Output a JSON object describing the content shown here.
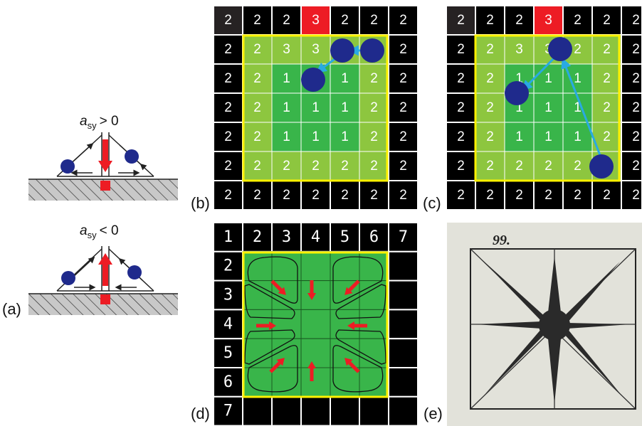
{
  "panel_labels": {
    "a": "(a)",
    "b": "(b)",
    "c": "(c)",
    "d": "(d)",
    "e": "(e)"
  },
  "panel_a": {
    "top": {
      "var": "a",
      "sub": "sy",
      "rel": "> 0"
    },
    "bottom": {
      "var": "a",
      "sub": "sy",
      "rel": "< 0"
    }
  },
  "grid_bc": [
    [
      2,
      2,
      2,
      3,
      2,
      2,
      2
    ],
    [
      2,
      2,
      3,
      3,
      2,
      2,
      2
    ],
    [
      2,
      2,
      1,
      1,
      1,
      2,
      2
    ],
    [
      2,
      2,
      1,
      1,
      1,
      2,
      2
    ],
    [
      2,
      2,
      1,
      1,
      1,
      2,
      2
    ],
    [
      2,
      2,
      2,
      2,
      2,
      2,
      2
    ],
    [
      2,
      2,
      2,
      2,
      2,
      2,
      2
    ]
  ],
  "grid_d": {
    "column_numbers": [
      "1",
      "2",
      "3",
      "4",
      "5",
      "6",
      "7"
    ],
    "row_numbers": [
      "2",
      "3",
      "4",
      "5",
      "6",
      "7"
    ]
  },
  "panel_e": {
    "caption": "99."
  },
  "colors": {
    "black_cell": "#000000",
    "corner_cell": "#262223",
    "highlight_cell": "#ed1c24",
    "outer_green": "#8dc63f",
    "inner_green": "#39b54a",
    "border_yellow": "#fff200",
    "ball_blue": "#1f2a8c",
    "arrow_cyan": "#29aae2",
    "force_red": "#ed1c24",
    "etching_bg": "#e2e2da"
  }
}
